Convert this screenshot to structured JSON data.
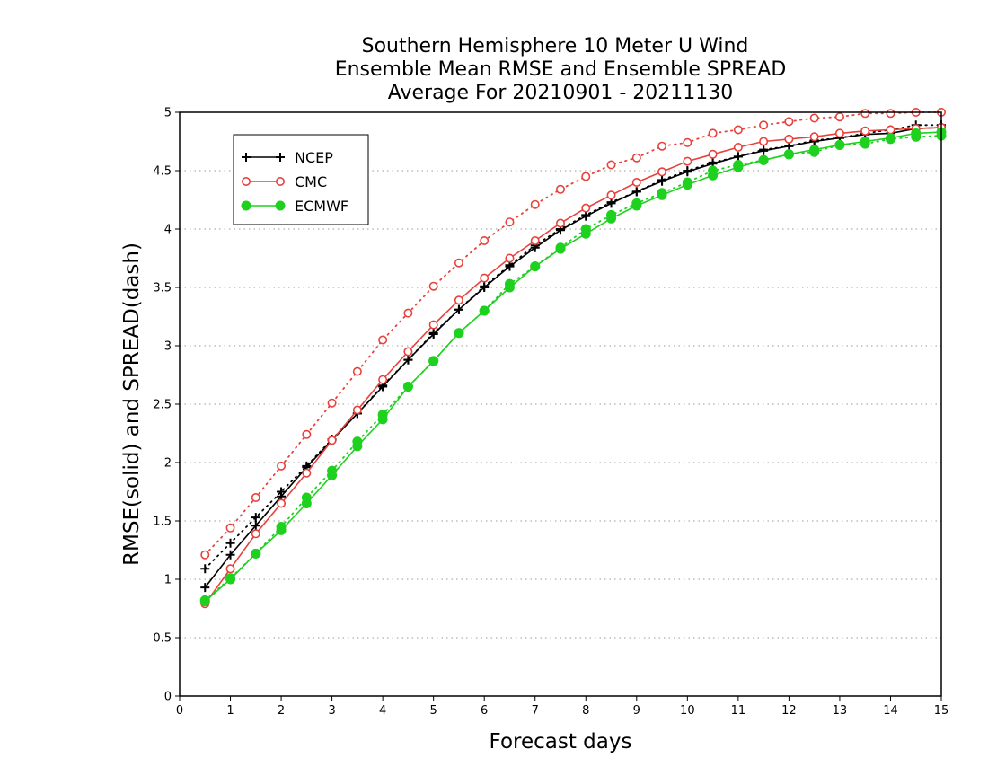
{
  "chart_data": {
    "type": "line",
    "title_lines": [
      "Southern Hemisphere 10 Meter U Wind",
      "Ensemble Mean RMSE and Ensemble SPREAD",
      "Average For 20210901 - 20211130"
    ],
    "xlabel": "Forecast days",
    "ylabel": "RMSE(solid) and SPREAD(dash)",
    "xlim": [
      0,
      15
    ],
    "ylim": [
      0,
      5
    ],
    "xticks": [
      "0",
      "1",
      "2",
      "3",
      "4",
      "5",
      "6",
      "7",
      "8",
      "9",
      "10",
      "11",
      "12",
      "13",
      "14",
      "15"
    ],
    "yticks": [
      "0",
      "0.5",
      "1",
      "1.5",
      "2",
      "2.5",
      "3",
      "3.5",
      "4",
      "4.5",
      "5"
    ],
    "grid": "horizontal-dotted",
    "legend_position": "top-left",
    "x": [
      0.5,
      1,
      1.5,
      2,
      2.5,
      3,
      3.5,
      4,
      4.5,
      5,
      5.5,
      6,
      6.5,
      7,
      7.5,
      8,
      8.5,
      9,
      9.5,
      10,
      10.5,
      11,
      11.5,
      12,
      12.5,
      13,
      13.5,
      14,
      14.5,
      15
    ],
    "series": [
      {
        "name": "NCEP",
        "color": "#000000",
        "marker": "plus",
        "rmse": [
          0.93,
          1.21,
          1.46,
          1.71,
          1.96,
          2.19,
          2.42,
          2.65,
          2.88,
          3.1,
          3.31,
          3.5,
          3.68,
          3.84,
          3.99,
          4.11,
          4.22,
          4.32,
          4.41,
          4.49,
          4.56,
          4.62,
          4.67,
          4.71,
          4.75,
          4.78,
          4.81,
          4.82,
          4.86,
          4.87
        ],
        "spread": [
          1.09,
          1.31,
          1.53,
          1.75,
          1.97,
          2.2,
          2.42,
          2.66,
          2.88,
          3.11,
          3.31,
          3.51,
          3.69,
          3.86,
          4.0,
          4.12,
          4.23,
          4.32,
          4.42,
          4.5,
          4.57,
          4.62,
          4.68,
          4.71,
          4.76,
          4.78,
          4.82,
          4.85,
          4.89,
          4.89
        ]
      },
      {
        "name": "CMC",
        "color": "#e8413c",
        "marker": "circle-open",
        "rmse": [
          0.79,
          1.09,
          1.39,
          1.65,
          1.91,
          2.19,
          2.45,
          2.71,
          2.95,
          3.18,
          3.39,
          3.58,
          3.75,
          3.9,
          4.05,
          4.18,
          4.29,
          4.4,
          4.49,
          4.58,
          4.64,
          4.7,
          4.75,
          4.77,
          4.79,
          4.82,
          4.84,
          4.85,
          4.86,
          4.87
        ],
        "spread": [
          1.21,
          1.44,
          1.7,
          1.97,
          2.24,
          2.51,
          2.78,
          3.05,
          3.28,
          3.51,
          3.71,
          3.9,
          4.06,
          4.21,
          4.34,
          4.45,
          4.55,
          4.61,
          4.71,
          4.74,
          4.82,
          4.85,
          4.89,
          4.92,
          4.95,
          4.96,
          4.99,
          4.99,
          5.0,
          5.0
        ]
      },
      {
        "name": "ECMWF",
        "color": "#1fd11f",
        "marker": "circle-filled",
        "rmse": [
          0.81,
          1.0,
          1.22,
          1.42,
          1.65,
          1.89,
          2.14,
          2.37,
          2.65,
          2.87,
          3.11,
          3.3,
          3.5,
          3.68,
          3.83,
          3.96,
          4.09,
          4.2,
          4.29,
          4.38,
          4.46,
          4.53,
          4.59,
          4.64,
          4.68,
          4.72,
          4.75,
          4.78,
          4.82,
          4.83
        ],
        "spread": [
          0.82,
          1.01,
          1.22,
          1.45,
          1.7,
          1.93,
          2.18,
          2.41,
          2.65,
          2.87,
          3.11,
          3.3,
          3.53,
          3.68,
          3.84,
          4.0,
          4.12,
          4.22,
          4.31,
          4.4,
          4.5,
          4.55,
          4.59,
          4.64,
          4.66,
          4.72,
          4.73,
          4.77,
          4.79,
          4.8
        ]
      }
    ]
  }
}
